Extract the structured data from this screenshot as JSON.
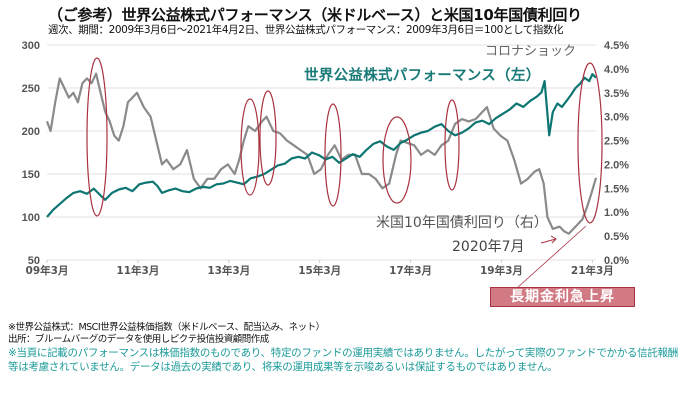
{
  "header": {
    "title": "（ご参考）世界公益株式パフォーマンス（米ドルベース）と米国10年国債利回り",
    "subtitle": "週次、期間：2009年3月6日～2021年4月2日、世界公益株式パフォーマンス：2009年3月6日＝100として指数化"
  },
  "annotations": {
    "corona": "コロナショック",
    "stock_label": "世界公益株式パフォーマンス（左）",
    "bond_label": "米国10年国債利回り（右）",
    "date_label": "2020年7月",
    "badge": "長期金利急上昇"
  },
  "notes": {
    "line1": "※世界公益株式：MSCI世界公益株価指数（米ドルベース、配当込み、ネット）",
    "line2": "出所：ブルームバーグのデータを使用しピクテ投信投資顧問作成",
    "line3": "※当頁に記載のパフォーマンスは株価指数のものであり、特定のファンドの運用実績ではありません。したがって実際のファンドでかかる信託報酬等は考慮されていません。データは過去の実績であり、将来の運用成果等を示唆あるいは保証するものではありません。"
  },
  "colors": {
    "stock": "#0d7673",
    "bond": "#8a8a8a",
    "highlight": "#a8323f",
    "grid": "#e6dde3"
  },
  "chart_data": {
    "type": "line",
    "title": "（ご参考）世界公益株式パフォーマンス（米ドルベース）と米国10年国債利回り",
    "x_range": [
      2009.17,
      2021.25
    ],
    "x_ticks": [
      {
        "value": 2009.17,
        "label": "09年3月"
      },
      {
        "value": 2011.17,
        "label": "11年3月"
      },
      {
        "value": 2013.17,
        "label": "13年3月"
      },
      {
        "value": 2015.17,
        "label": "15年3月"
      },
      {
        "value": 2017.17,
        "label": "17年3月"
      },
      {
        "value": 2019.17,
        "label": "19年3月"
      },
      {
        "value": 2021.17,
        "label": "21年3月"
      }
    ],
    "y_left": {
      "range": [
        50,
        300
      ],
      "ticks": [
        "50",
        "100",
        "150",
        "200",
        "250",
        "300"
      ]
    },
    "y_right": {
      "range": [
        0,
        4.5
      ],
      "ticks": [
        "0.0%",
        "0.5%",
        "1.0%",
        "1.5%",
        "2.0%",
        "2.5%",
        "3.0%",
        "3.5%",
        "4.0%",
        "4.5%"
      ]
    },
    "grid": true,
    "series": [
      {
        "name": "世界公益株式パフォーマンス（左）",
        "axis": "left",
        "x": [
          2009.17,
          2009.3,
          2009.45,
          2009.6,
          2009.75,
          2009.9,
          2010.05,
          2010.2,
          2010.35,
          2010.45,
          2010.6,
          2010.75,
          2010.9,
          2011.05,
          2011.2,
          2011.35,
          2011.5,
          2011.6,
          2011.7,
          2011.85,
          2012.0,
          2012.15,
          2012.3,
          2012.45,
          2012.6,
          2012.75,
          2012.9,
          2013.05,
          2013.2,
          2013.35,
          2013.5,
          2013.65,
          2013.8,
          2013.95,
          2014.1,
          2014.25,
          2014.4,
          2014.55,
          2014.7,
          2014.85,
          2015.0,
          2015.15,
          2015.3,
          2015.45,
          2015.6,
          2015.75,
          2015.9,
          2016.05,
          2016.2,
          2016.35,
          2016.5,
          2016.65,
          2016.8,
          2016.95,
          2017.1,
          2017.25,
          2017.4,
          2017.55,
          2017.7,
          2017.85,
          2018.0,
          2018.15,
          2018.3,
          2018.45,
          2018.6,
          2018.75,
          2018.9,
          2019.05,
          2019.2,
          2019.35,
          2019.5,
          2019.65,
          2019.8,
          2019.95,
          2020.05,
          2020.12,
          2020.18,
          2020.22,
          2020.3,
          2020.4,
          2020.5,
          2020.6,
          2020.7,
          2020.8,
          2020.9,
          2021.0,
          2021.1,
          2021.17,
          2021.25
        ],
        "values": [
          100,
          108,
          115,
          122,
          128,
          130,
          127,
          133,
          125,
          120,
          128,
          132,
          134,
          130,
          138,
          140,
          141,
          136,
          128,
          131,
          133,
          130,
          129,
          133,
          135,
          134,
          138,
          139,
          142,
          140,
          138,
          145,
          147,
          150,
          155,
          160,
          162,
          168,
          170,
          168,
          175,
          172,
          167,
          170,
          163,
          168,
          173,
          170,
          178,
          185,
          188,
          182,
          178,
          186,
          190,
          195,
          198,
          200,
          205,
          208,
          200,
          195,
          198,
          203,
          210,
          212,
          208,
          215,
          220,
          225,
          232,
          228,
          235,
          240,
          245,
          258,
          220,
          195,
          222,
          232,
          228,
          235,
          242,
          250,
          255,
          262,
          258,
          266,
          262
        ]
      },
      {
        "name": "米国10年国債利回り（右）",
        "axis": "right",
        "x": [
          2009.17,
          2009.25,
          2009.35,
          2009.45,
          2009.55,
          2009.65,
          2009.75,
          2009.85,
          2009.95,
          2010.05,
          2010.15,
          2010.25,
          2010.35,
          2010.45,
          2010.55,
          2010.65,
          2010.75,
          2010.85,
          2010.95,
          2011.05,
          2011.15,
          2011.3,
          2011.45,
          2011.6,
          2011.7,
          2011.8,
          2011.95,
          2012.1,
          2012.25,
          2012.4,
          2012.55,
          2012.7,
          2012.85,
          2013.0,
          2013.15,
          2013.3,
          2013.4,
          2013.5,
          2013.6,
          2013.75,
          2013.9,
          2014.0,
          2014.15,
          2014.3,
          2014.45,
          2014.6,
          2014.75,
          2014.9,
          2015.05,
          2015.2,
          2015.35,
          2015.5,
          2015.65,
          2015.8,
          2015.95,
          2016.1,
          2016.25,
          2016.4,
          2016.55,
          2016.7,
          2016.85,
          2016.95,
          2017.1,
          2017.25,
          2017.4,
          2017.55,
          2017.7,
          2017.85,
          2018.0,
          2018.15,
          2018.3,
          2018.45,
          2018.6,
          2018.75,
          2018.85,
          2019.0,
          2019.15,
          2019.3,
          2019.45,
          2019.6,
          2019.75,
          2019.9,
          2020.0,
          2020.1,
          2020.18,
          2020.3,
          2020.45,
          2020.55,
          2020.65,
          2020.8,
          2020.95,
          2021.05,
          2021.15,
          2021.25
        ],
        "values": [
          2.9,
          2.7,
          3.3,
          3.8,
          3.6,
          3.4,
          3.5,
          3.3,
          3.7,
          3.8,
          3.7,
          3.9,
          3.5,
          3.1,
          2.9,
          2.6,
          2.5,
          2.8,
          3.3,
          3.4,
          3.5,
          3.2,
          3.0,
          2.4,
          2.0,
          2.1,
          1.9,
          2.0,
          2.3,
          1.7,
          1.5,
          1.7,
          1.7,
          1.9,
          2.0,
          1.8,
          2.1,
          2.5,
          2.8,
          2.7,
          2.9,
          3.0,
          2.7,
          2.65,
          2.5,
          2.4,
          2.3,
          2.2,
          1.8,
          1.9,
          2.2,
          2.4,
          2.1,
          2.2,
          2.2,
          1.8,
          1.8,
          1.7,
          1.5,
          1.6,
          2.2,
          2.5,
          2.45,
          2.4,
          2.2,
          2.3,
          2.2,
          2.4,
          2.5,
          2.85,
          2.95,
          2.9,
          2.95,
          3.1,
          3.2,
          2.75,
          2.6,
          2.5,
          2.1,
          1.6,
          1.7,
          1.85,
          1.9,
          1.6,
          0.9,
          0.65,
          0.7,
          0.6,
          0.55,
          0.7,
          0.85,
          1.1,
          1.4,
          1.72
        ]
      }
    ],
    "highlights": [
      {
        "x": 2010.35,
        "label": ""
      },
      {
        "x": 2013.3,
        "label": ""
      },
      {
        "x": 2013.6,
        "label": ""
      },
      {
        "x": 2016.55,
        "label": ""
      },
      {
        "x": 2016.9,
        "label": ""
      },
      {
        "x": 2018.25,
        "label": ""
      },
      {
        "x": 2021.0,
        "label": ""
      }
    ]
  }
}
